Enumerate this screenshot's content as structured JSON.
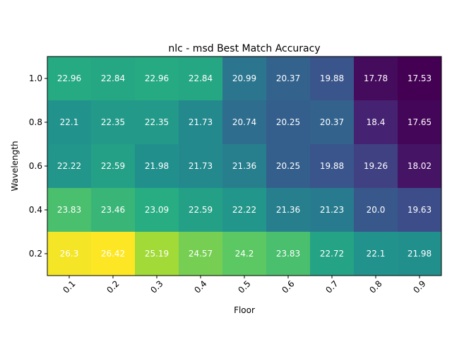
{
  "chart_data": {
    "type": "heatmap",
    "title": "nlc - msd Best Match Accuracy",
    "xlabel": "Floor",
    "ylabel": "Wavelength",
    "x": [
      "0.1",
      "0.2",
      "0.3",
      "0.4",
      "0.5",
      "0.6",
      "0.7",
      "0.8",
      "0.9"
    ],
    "y": [
      "1.0",
      "0.8",
      "0.6",
      "0.4",
      "0.2"
    ],
    "values": [
      [
        22.96,
        22.84,
        22.96,
        22.84,
        20.99,
        20.37,
        19.88,
        17.78,
        17.53
      ],
      [
        22.1,
        22.35,
        22.35,
        21.73,
        20.74,
        20.25,
        20.37,
        18.4,
        17.65
      ],
      [
        22.22,
        22.59,
        21.98,
        21.73,
        21.36,
        20.25,
        19.88,
        19.26,
        18.02
      ],
      [
        23.83,
        23.46,
        23.09,
        22.59,
        22.22,
        21.36,
        21.23,
        20.0,
        19.63
      ],
      [
        26.3,
        26.42,
        25.19,
        24.57,
        24.2,
        23.83,
        22.72,
        22.1,
        21.98
      ]
    ],
    "value_labels": [
      [
        "22.96",
        "22.84",
        "22.96",
        "22.84",
        "20.99",
        "20.37",
        "19.88",
        "17.78",
        "17.53"
      ],
      [
        "22.1",
        "22.35",
        "22.35",
        "21.73",
        "20.74",
        "20.25",
        "20.37",
        "18.4",
        "17.65"
      ],
      [
        "22.22",
        "22.59",
        "21.98",
        "21.73",
        "21.36",
        "20.25",
        "19.88",
        "19.26",
        "18.02"
      ],
      [
        "23.83",
        "23.46",
        "23.09",
        "22.59",
        "22.22",
        "21.36",
        "21.23",
        "20.0",
        "19.63"
      ],
      [
        "26.3",
        "26.42",
        "25.19",
        "24.57",
        "24.2",
        "23.83",
        "22.72",
        "22.1",
        "21.98"
      ]
    ],
    "colormap": "viridis",
    "grid": false,
    "legend": "none"
  }
}
